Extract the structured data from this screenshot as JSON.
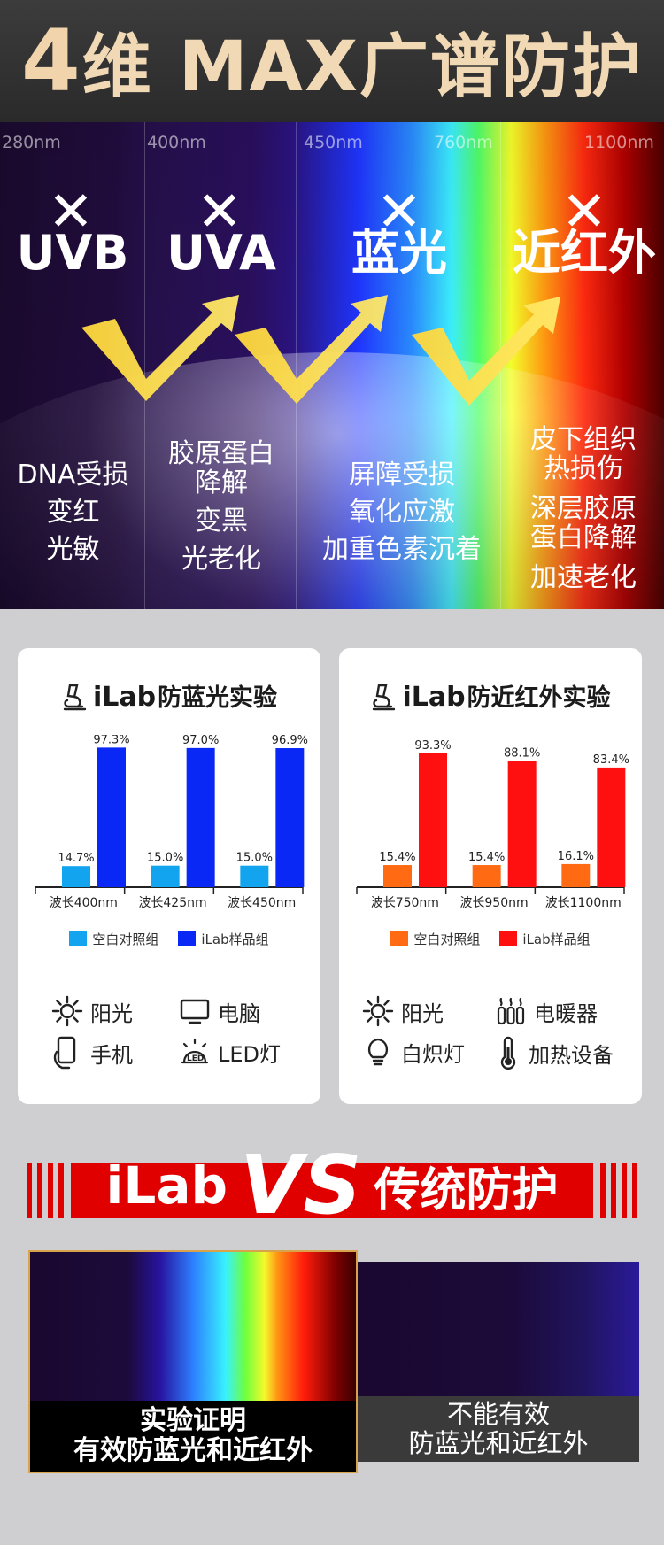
{
  "header": {
    "num": "4",
    "title": "维 MAX广谱防护"
  },
  "wavelengths": [
    "280nm",
    "400nm",
    "450nm",
    "760nm",
    "1100nm"
  ],
  "cross_mark": "✕",
  "bands": [
    {
      "label": "UVB",
      "effects": [
        "DNA受损",
        "变红",
        "光敏"
      ]
    },
    {
      "label": "UVA",
      "effects": [
        "胶原蛋白",
        "降解",
        "变黑",
        "光老化"
      ]
    },
    {
      "label": "蓝光",
      "effects": [
        "屏障受损",
        "氧化应激",
        "加重色素沉着"
      ]
    },
    {
      "label": "近红外",
      "effects": [
        "皮下组织",
        "热损伤",
        "深层胶原",
        "蛋白降解",
        "加速老化"
      ]
    }
  ],
  "colors": {
    "blue_control": "#12a4ee",
    "blue_ilab": "#0a28f5",
    "red_control": "#ff6a12",
    "red_ilab": "#ff1010",
    "accent_red": "#e00000"
  },
  "blue_card": {
    "brand": "iLab",
    "title": "防蓝光实验",
    "legend": [
      "空白对照组",
      "iLab样品组"
    ],
    "sources": [
      "阳光",
      "电脑",
      "手机",
      "LED灯"
    ],
    "source_icons": [
      "sun-icon",
      "monitor-icon",
      "phone-icon",
      "led-lamp-icon"
    ]
  },
  "red_card": {
    "brand": "iLab",
    "title": "防近红外实验",
    "legend": [
      "空白对照组",
      "iLab样品组"
    ],
    "sources": [
      "阳光",
      "电暖器",
      "白炽灯",
      "加热设备"
    ],
    "source_icons": [
      "sun-icon",
      "heater-icon",
      "bulb-icon",
      "thermometer-icon"
    ]
  },
  "chart_data": [
    {
      "type": "bar",
      "title": "iLab防蓝光实验",
      "categories": [
        "波长400nm",
        "波长425nm",
        "波长450nm"
      ],
      "series": [
        {
          "name": "空白对照组",
          "values": [
            14.7,
            15.0,
            15.0
          ],
          "color": "#12a4ee"
        },
        {
          "name": "iLab样品组",
          "values": [
            97.3,
            97.0,
            96.9
          ],
          "color": "#0a28f5"
        }
      ],
      "value_labels": [
        [
          "14.7%",
          "15.0%",
          "15.0%"
        ],
        [
          "97.3%",
          "97.0%",
          "96.9%"
        ]
      ],
      "ylim": [
        0,
        100
      ],
      "grid": false,
      "legend_position": "bottom"
    },
    {
      "type": "bar",
      "title": "iLab防近红外实验",
      "categories": [
        "波长750nm",
        "波长950nm",
        "波长1100nm"
      ],
      "series": [
        {
          "name": "空白对照组",
          "values": [
            15.4,
            15.4,
            16.1
          ],
          "color": "#ff6a12"
        },
        {
          "name": "iLab样品组",
          "values": [
            93.3,
            88.1,
            83.4
          ],
          "color": "#ff1010"
        }
      ],
      "value_labels": [
        [
          "15.4%",
          "15.4%",
          "16.1%"
        ],
        [
          "93.3%",
          "88.1%",
          "83.4%"
        ]
      ],
      "ylim": [
        0,
        100
      ],
      "grid": false,
      "legend_position": "bottom"
    }
  ],
  "vs_banner": {
    "ilab": "iLab",
    "vs": "VS",
    "traditional": "传统防护"
  },
  "compare": {
    "left_lines": [
      "实验证明",
      "有效防蓝光和近红外"
    ],
    "right_lines": [
      "不能有效",
      "防蓝光和近红外"
    ]
  }
}
